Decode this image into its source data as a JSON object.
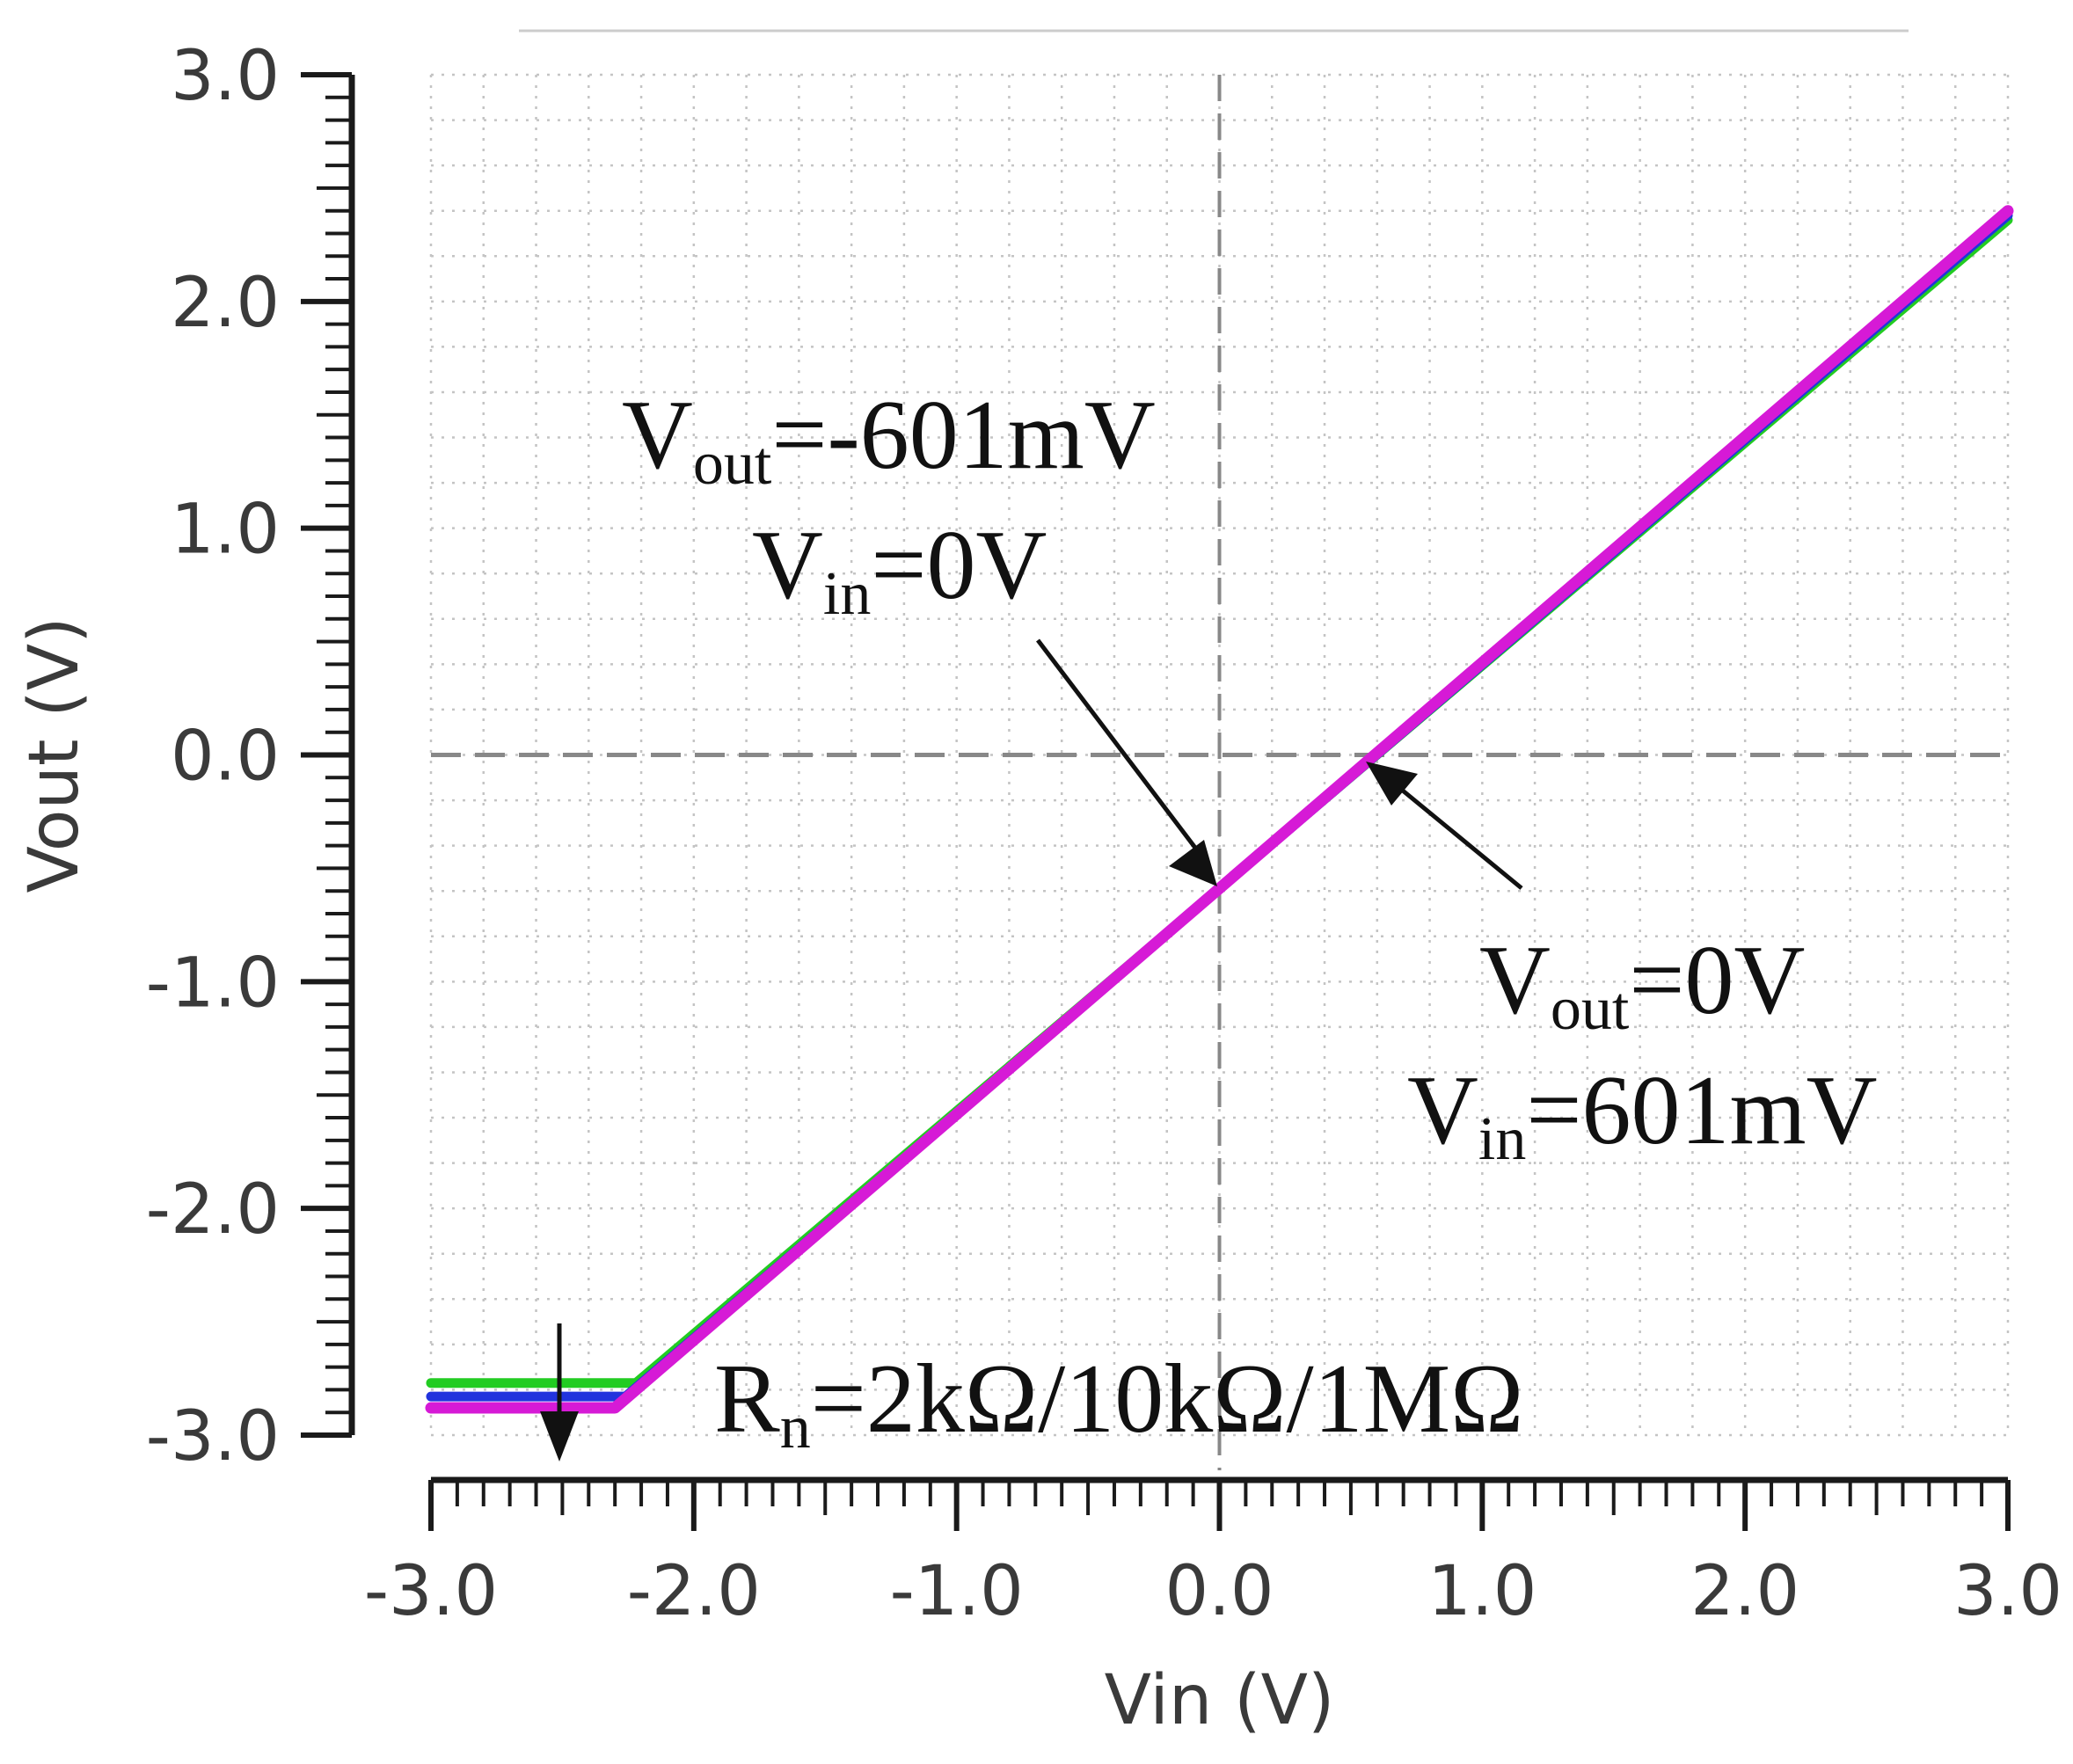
{
  "chart_data": {
    "type": "line",
    "title": "",
    "xlabel": "Vin (V)",
    "ylabel": "Vout (V)",
    "xlim": [
      -3.0,
      3.0
    ],
    "ylim": [
      -3.0,
      3.0
    ],
    "grid": true,
    "x_tick_labels": [
      "-3.0",
      "-2.0",
      "-1.0",
      "0.0",
      "1.0",
      "2.0",
      "3.0"
    ],
    "y_tick_labels": [
      "3.0",
      "2.0",
      "1.0",
      "0.0",
      "-1.0",
      "-2.0",
      "-3.0"
    ],
    "series": [
      {
        "name": "Rn=2kΩ",
        "color": "#22cc22",
        "x": [
          -3.0,
          -2.22,
          3.0
        ],
        "y": [
          -2.77,
          -2.77,
          2.36
        ]
      },
      {
        "name": "Rn=10kΩ",
        "color": "#2233dd",
        "x": [
          -3.0,
          -2.26,
          3.0
        ],
        "y": [
          -2.83,
          -2.83,
          2.38
        ]
      },
      {
        "name": "Rn=1MΩ",
        "color": "#d61ad6",
        "x": [
          -3.0,
          -2.3,
          3.0
        ],
        "y": [
          -2.88,
          -2.88,
          2.4
        ]
      }
    ],
    "reference_lines": {
      "vertical_x": 0.0,
      "horizontal_y": 0.0
    },
    "annotations": [
      {
        "id": "a1",
        "main1": "V",
        "sub1": "out",
        "rest1": "=-601mV",
        "main2": "V",
        "sub2": "in",
        "rest2": "=0V",
        "point": [
          0.0,
          -0.601
        ]
      },
      {
        "id": "a2",
        "main1": "V",
        "sub1": "out",
        "rest1": "=0V",
        "main2": "V",
        "sub2": "in",
        "rest2": "=601mV",
        "point": [
          0.601,
          0.0
        ]
      },
      {
        "id": "a3",
        "main": "R",
        "sub": "n",
        "rest": "=2kΩ/10kΩ/1MΩ",
        "point": [
          -2.5,
          -3.0
        ]
      }
    ]
  }
}
